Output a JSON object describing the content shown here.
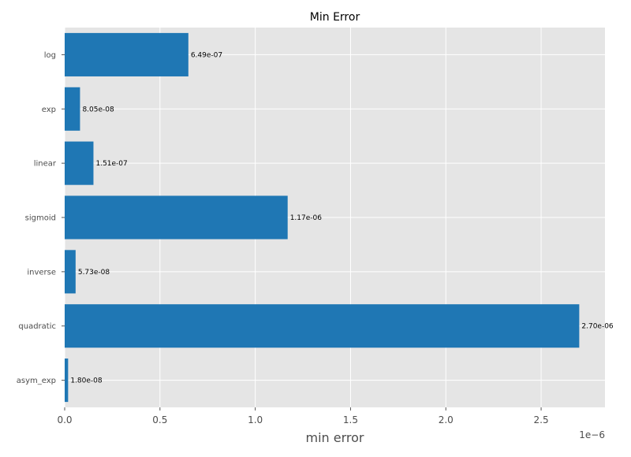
{
  "chart_data": {
    "type": "bar",
    "orientation": "horizontal",
    "title": "Min Error",
    "xlabel": "min error",
    "ylabel": "",
    "x_offset_label": "1e−6",
    "categories": [
      "log",
      "exp",
      "linear",
      "sigmoid",
      "inverse",
      "quadratic",
      "asym_exp"
    ],
    "values": [
      6.49e-07,
      8.05e-08,
      1.51e-07,
      1.17e-06,
      5.73e-08,
      2.7e-06,
      1.8e-08
    ],
    "value_labels": [
      "6.49e-07",
      "8.05e-08",
      "1.51e-07",
      "1.17e-06",
      "5.73e-08",
      "2.70e-06",
      "1.80e-08"
    ],
    "xticks": [
      0.0,
      0.5,
      1.0,
      1.5,
      2.0,
      2.5
    ],
    "xtick_labels": [
      "0.0",
      "0.5",
      "1.0",
      "1.5",
      "2.0",
      "2.5"
    ],
    "xlim": [
      0,
      2.835e-06
    ],
    "grid": true,
    "bar_color": "#1f77b4",
    "background_color": "#e5e5e5",
    "grid_color": "#ffffff"
  }
}
